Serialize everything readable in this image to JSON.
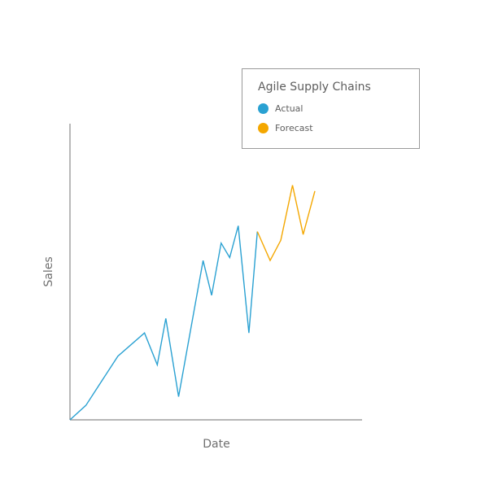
{
  "chart_data": {
    "type": "line",
    "title": "",
    "xlabel": "Date",
    "ylabel": "Sales",
    "grid": false,
    "legend_position": "top-right",
    "legend_title": "Agile Supply Chains",
    "x_count": 23,
    "ylim": [
      0,
      100
    ],
    "series": [
      {
        "name": "Actual",
        "color": "#2aa1d2",
        "points": [
          {
            "i": 0,
            "y": 0
          },
          {
            "i": 1.5,
            "y": 5
          },
          {
            "i": 4.5,
            "y": 22
          },
          {
            "i": 7,
            "y": 30
          },
          {
            "i": 8.2,
            "y": 19
          },
          {
            "i": 9,
            "y": 35
          },
          {
            "i": 10.2,
            "y": 8
          },
          {
            "i": 12.5,
            "y": 55
          },
          {
            "i": 13.3,
            "y": 43
          },
          {
            "i": 14.2,
            "y": 61
          },
          {
            "i": 15,
            "y": 56
          },
          {
            "i": 15.8,
            "y": 67
          },
          {
            "i": 16.8,
            "y": 30
          },
          {
            "i": 17.6,
            "y": 65
          }
        ]
      },
      {
        "name": "Forecast",
        "color": "#f4a700",
        "points": [
          {
            "i": 17.6,
            "y": 65
          },
          {
            "i": 18.8,
            "y": 55
          },
          {
            "i": 19.8,
            "y": 62
          },
          {
            "i": 20.9,
            "y": 81
          },
          {
            "i": 21.9,
            "y": 64
          },
          {
            "i": 23,
            "y": 79
          }
        ]
      }
    ]
  }
}
